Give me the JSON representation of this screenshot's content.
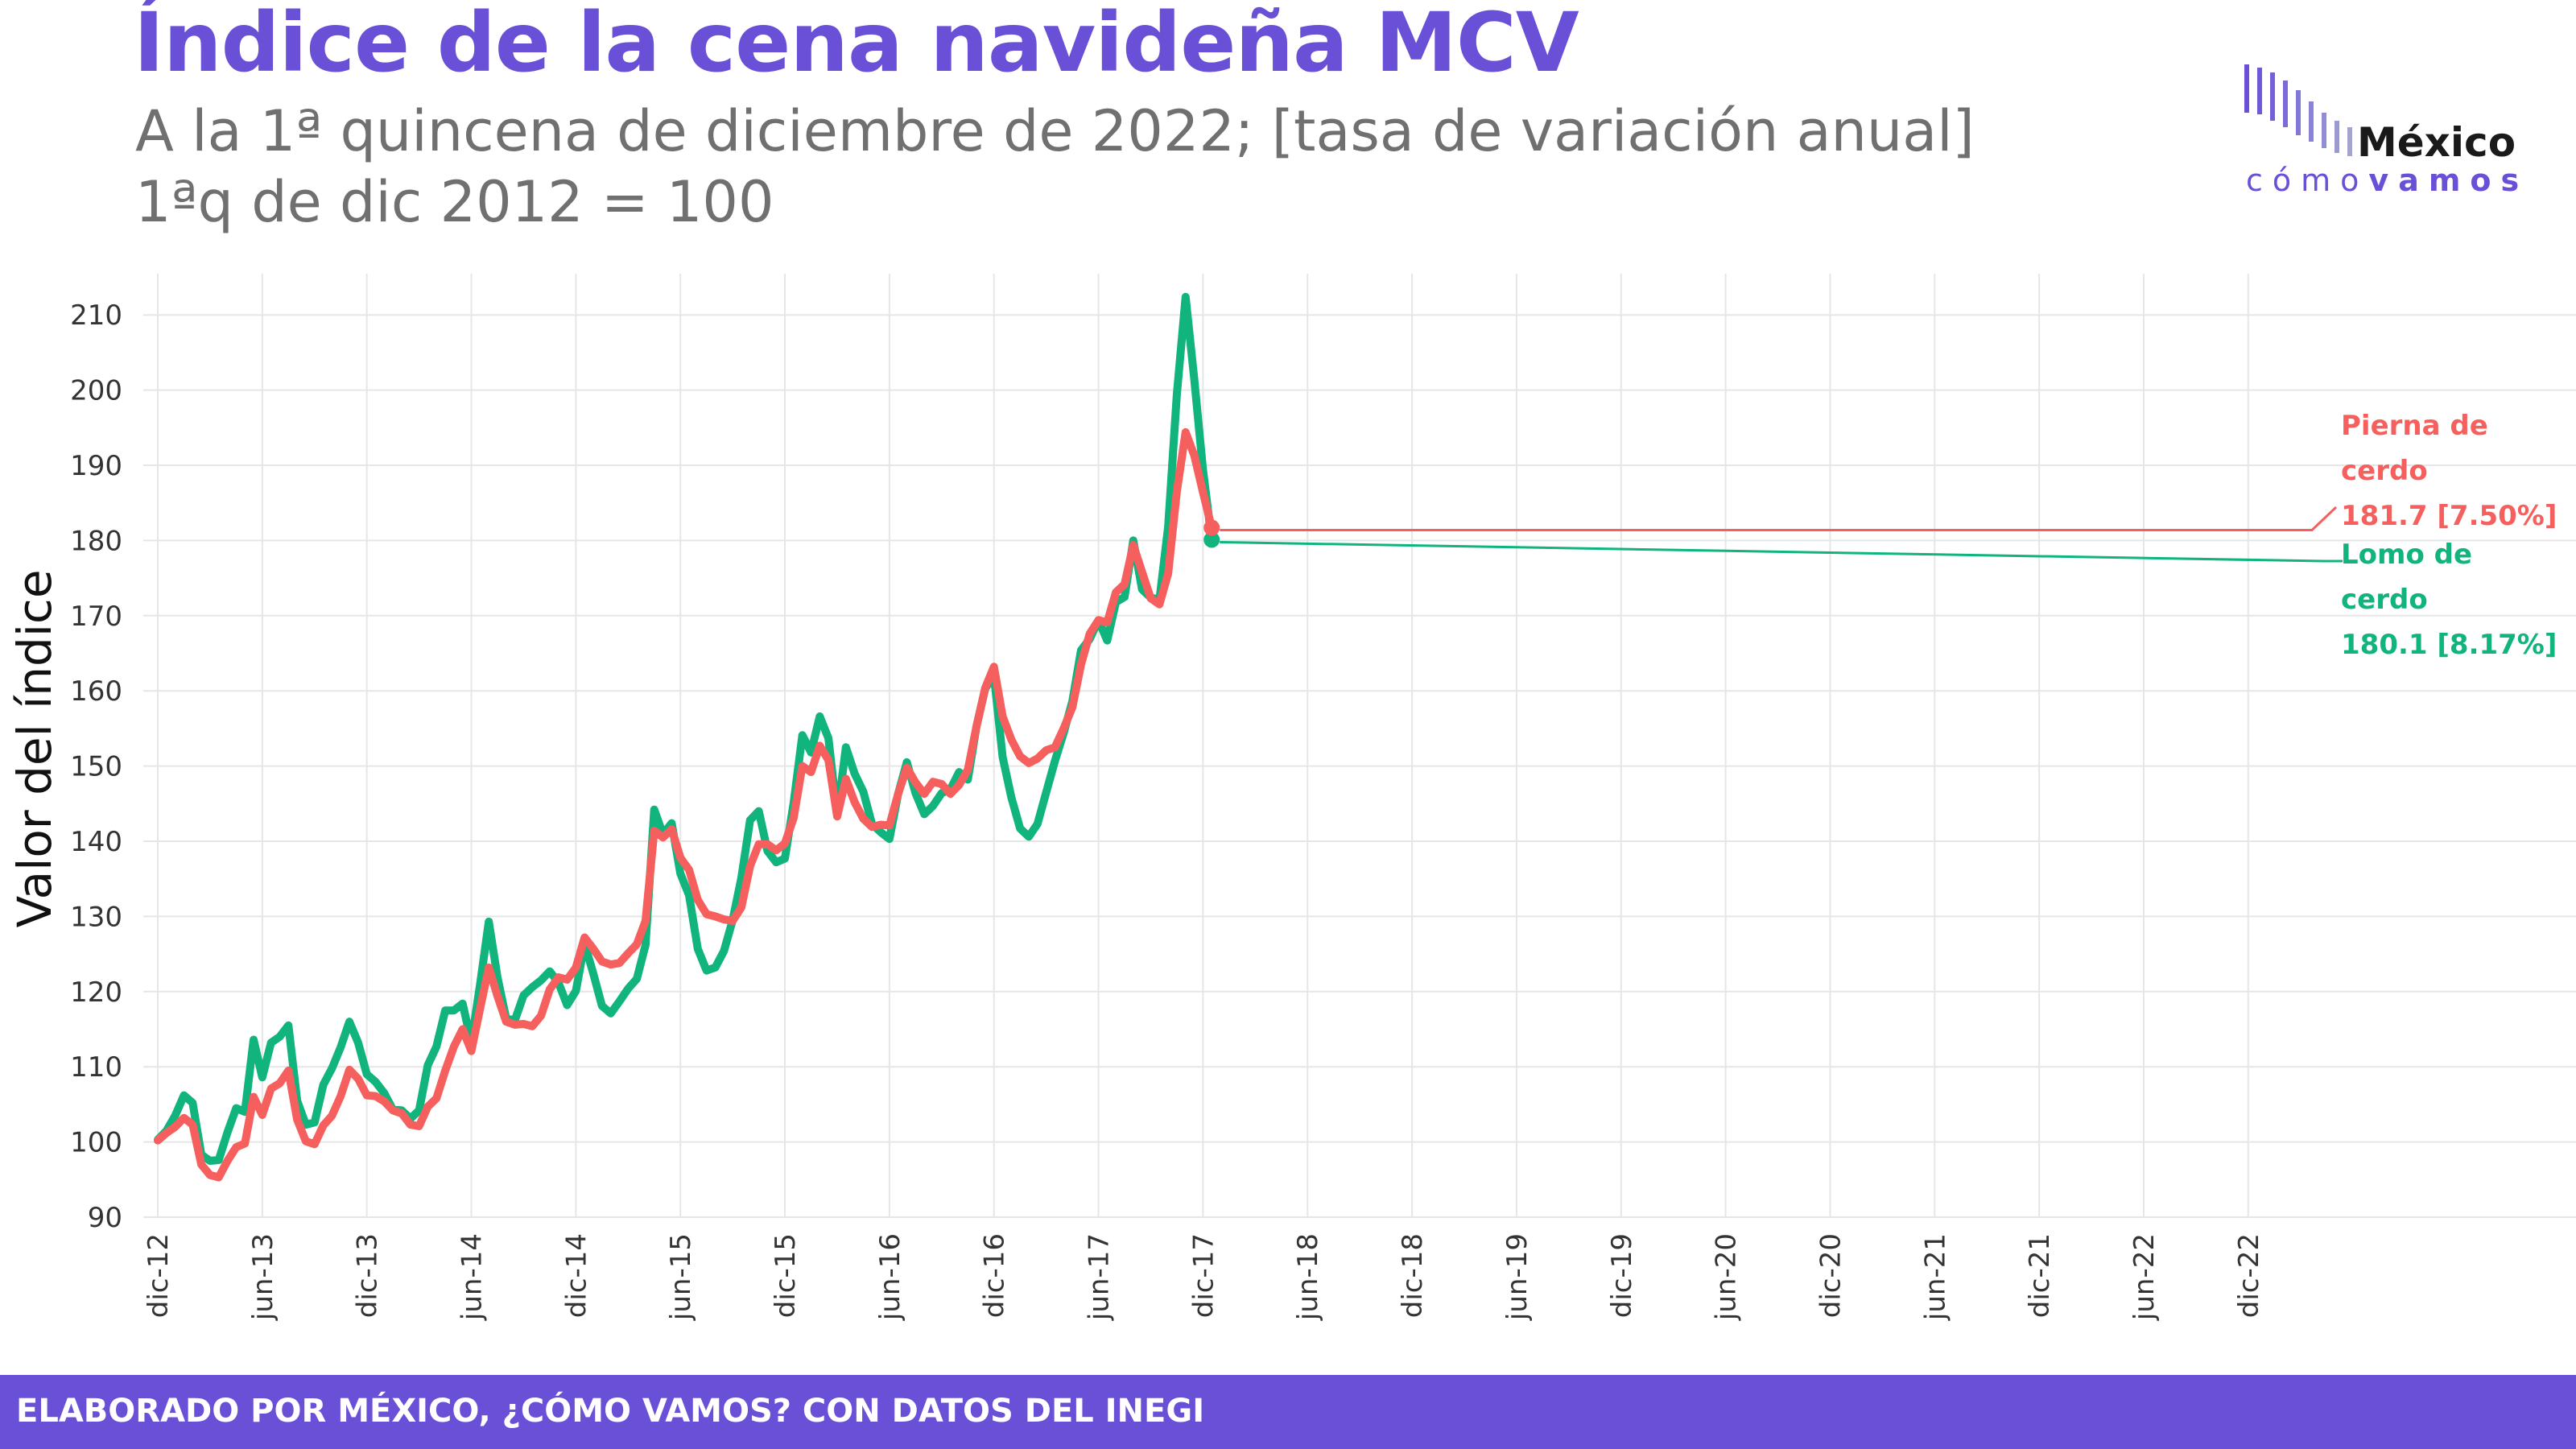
{
  "header": {
    "title": "Índice de la cena navideña MCV",
    "subtitle_line1": "A la 1ª quincena de diciembre de 2022; [tasa de variación anual]",
    "subtitle_line2": "1ªq de dic 2012 = 100"
  },
  "logo": {
    "name": "México",
    "tagline_a": "cómo",
    "tagline_b": "vamos"
  },
  "footer": {
    "text": "ELABORADO POR MÉXICO, ¿CÓMO VAMOS? CON DATOS DEL INEGI"
  },
  "colors": {
    "accent": "#6a4fd7",
    "lomo": "#10b47c",
    "pierna": "#f5605e"
  },
  "chart_data": {
    "type": "line",
    "ylabel": "Valor del índice",
    "ylim": [
      90,
      213
    ],
    "yticks": [
      90,
      100,
      110,
      120,
      130,
      140,
      150,
      160,
      170,
      180,
      190,
      200,
      210
    ],
    "x_tick_labels": [
      "dic-12",
      "jun-13",
      "dic-13",
      "jun-14",
      "dic-14",
      "jun-15",
      "dic-15",
      "jun-16",
      "dic-16",
      "jun-17",
      "dic-17",
      "jun-18",
      "dic-18",
      "jun-19",
      "dic-19",
      "jun-20",
      "dic-20",
      "jun-21",
      "dic-21",
      "jun-22",
      "dic-22"
    ],
    "x_note": "semi-monthly points (1st/2nd fortnight), Dec 2012 1st fortnight to Dec 2022 1st fortnight; keypoints interpolated between",
    "series": [
      {
        "name": "Lomo de cerdo",
        "end_label": "Lomo de cerdo",
        "end_value_text": "180.1 [8.17%]",
        "keypoints": [
          [
            0,
            100.3
          ],
          [
            1,
            101.5
          ],
          [
            2,
            103.5
          ],
          [
            3,
            106.2
          ],
          [
            4,
            105.2
          ],
          [
            5,
            98.3
          ],
          [
            6,
            97.5
          ],
          [
            7,
            97.6
          ],
          [
            8,
            101.3
          ],
          [
            9,
            104.5
          ],
          [
            10,
            104
          ],
          [
            11,
            113.6
          ],
          [
            12,
            108.6
          ],
          [
            13,
            113.2
          ],
          [
            14,
            114
          ],
          [
            15,
            115.5
          ],
          [
            16,
            105.5
          ],
          [
            17,
            102.3
          ],
          [
            18,
            102.6
          ],
          [
            19,
            107.6
          ],
          [
            20,
            109.8
          ],
          [
            21,
            112.6
          ],
          [
            22,
            116
          ],
          [
            23,
            113.2
          ],
          [
            24,
            109
          ],
          [
            25,
            108
          ],
          [
            26,
            106.5
          ],
          [
            27,
            104.3
          ],
          [
            28,
            104.2
          ],
          [
            29,
            103.1
          ],
          [
            30,
            104.2
          ],
          [
            31,
            110.2
          ],
          [
            32,
            112.7
          ],
          [
            33,
            117.5
          ],
          [
            34,
            117.5
          ],
          [
            35,
            118.4
          ],
          [
            36,
            113.2
          ],
          [
            37,
            120.9
          ],
          [
            38,
            129.3
          ],
          [
            39,
            121.9
          ],
          [
            40,
            116.4
          ],
          [
            41,
            116.2
          ],
          [
            42,
            119.5
          ],
          [
            43,
            120.6
          ],
          [
            44,
            121.5
          ],
          [
            45,
            122.7
          ],
          [
            46,
            121.2
          ],
          [
            47,
            118.2
          ],
          [
            48,
            120.1
          ],
          [
            49,
            126.4
          ],
          [
            50,
            122.4
          ],
          [
            51,
            118.1
          ],
          [
            52,
            117.1
          ],
          [
            53,
            118.7
          ],
          [
            54,
            120.4
          ],
          [
            55,
            121.7
          ],
          [
            56,
            126.2
          ],
          [
            57,
            144.2
          ],
          [
            58,
            140.9
          ],
          [
            59,
            142.4
          ],
          [
            60,
            135.7
          ],
          [
            61,
            132.8
          ],
          [
            62,
            125.7
          ],
          [
            63,
            122.8
          ],
          [
            64,
            123.2
          ],
          [
            65,
            125.4
          ],
          [
            66,
            129.5
          ],
          [
            67,
            135.1
          ],
          [
            68,
            142.8
          ],
          [
            69,
            144
          ],
          [
            70,
            138.7
          ],
          [
            71,
            137.2
          ],
          [
            72,
            137.7
          ],
          [
            73,
            145.1
          ],
          [
            74,
            154.1
          ],
          [
            75,
            151.8
          ],
          [
            76,
            156.6
          ],
          [
            77,
            153.7
          ],
          [
            78,
            143.4
          ],
          [
            79,
            152.5
          ],
          [
            80,
            149
          ],
          [
            81,
            146.6
          ],
          [
            82,
            142.3
          ],
          [
            83,
            141.2
          ],
          [
            84,
            140.3
          ],
          [
            85,
            146.3
          ],
          [
            86,
            150.5
          ],
          [
            87,
            146.4
          ],
          [
            88,
            143.6
          ],
          [
            89,
            144.7
          ],
          [
            90,
            146.4
          ],
          [
            91,
            146.9
          ],
          [
            92,
            149.2
          ],
          [
            93,
            148.2
          ],
          [
            94,
            155.3
          ],
          [
            95,
            160.3
          ],
          [
            96,
            162.1
          ],
          [
            97,
            151.2
          ],
          [
            98,
            145.8
          ],
          [
            99,
            141.7
          ],
          [
            100,
            140.6
          ],
          [
            101,
            142.3
          ],
          [
            102,
            146.5
          ],
          [
            103,
            150.7
          ],
          [
            104,
            154.4
          ],
          [
            105,
            158.6
          ],
          [
            106,
            165.4
          ],
          [
            107,
            166.9
          ],
          [
            108,
            169.4
          ],
          [
            109,
            166.7
          ],
          [
            110,
            171.8
          ],
          [
            111,
            172.5
          ],
          [
            112,
            180
          ],
          [
            113,
            173.5
          ],
          [
            114,
            172.4
          ],
          [
            115,
            172.1
          ],
          [
            116,
            181.8
          ],
          [
            117,
            199.4
          ],
          [
            118,
            212.4
          ],
          [
            119,
            201.4
          ],
          [
            120,
            189.4
          ],
          [
            121,
            180.1
          ]
        ]
      },
      {
        "name": "Pierna de cerdo",
        "end_label": "Pierna de cerdo",
        "end_value_text": "181.7 [7.50%]",
        "keypoints": [
          [
            0,
            100.2
          ],
          [
            1,
            101.2
          ],
          [
            2,
            102
          ],
          [
            3,
            103.2
          ],
          [
            4,
            102.3
          ],
          [
            5,
            97
          ],
          [
            6,
            95.6
          ],
          [
            7,
            95.3
          ],
          [
            8,
            97.5
          ],
          [
            9,
            99.3
          ],
          [
            10,
            99.8
          ],
          [
            11,
            106
          ],
          [
            12,
            103.6
          ],
          [
            13,
            107.1
          ],
          [
            14,
            107.8
          ],
          [
            15,
            109.5
          ],
          [
            16,
            103
          ],
          [
            17,
            100.1
          ],
          [
            18,
            99.7
          ],
          [
            19,
            102.2
          ],
          [
            20,
            103.5
          ],
          [
            21,
            106.1
          ],
          [
            22,
            109.6
          ],
          [
            23,
            108.4
          ],
          [
            24,
            106.2
          ],
          [
            25,
            106.1
          ],
          [
            26,
            105.4
          ],
          [
            27,
            104.2
          ],
          [
            28,
            103.8
          ],
          [
            29,
            102.3
          ],
          [
            30,
            102.1
          ],
          [
            31,
            104.7
          ],
          [
            32,
            105.8
          ],
          [
            33,
            109.5
          ],
          [
            34,
            112.7
          ],
          [
            35,
            115
          ],
          [
            36,
            112.1
          ],
          [
            37,
            117.7
          ],
          [
            38,
            123.2
          ],
          [
            39,
            119.4
          ],
          [
            40,
            116
          ],
          [
            41,
            115.6
          ],
          [
            42,
            115.7
          ],
          [
            43,
            115.4
          ],
          [
            44,
            116.8
          ],
          [
            45,
            120.3
          ],
          [
            46,
            121.9
          ],
          [
            47,
            121.6
          ],
          [
            48,
            123.2
          ],
          [
            49,
            127.2
          ],
          [
            50,
            125.7
          ],
          [
            51,
            124
          ],
          [
            52,
            123.6
          ],
          [
            53,
            123.8
          ],
          [
            54,
            125.1
          ],
          [
            55,
            126.3
          ],
          [
            56,
            129.4
          ],
          [
            57,
            141.4
          ],
          [
            58,
            140.5
          ],
          [
            59,
            141.6
          ],
          [
            60,
            137.8
          ],
          [
            61,
            136.2
          ],
          [
            62,
            132.2
          ],
          [
            63,
            130.3
          ],
          [
            64,
            130
          ],
          [
            65,
            129.6
          ],
          [
            66,
            129.4
          ],
          [
            67,
            131.2
          ],
          [
            68,
            136.7
          ],
          [
            69,
            139.6
          ],
          [
            70,
            139.6
          ],
          [
            71,
            138.8
          ],
          [
            72,
            139.7
          ],
          [
            73,
            143.1
          ],
          [
            74,
            150
          ],
          [
            75,
            149.2
          ],
          [
            76,
            152.7
          ],
          [
            77,
            150.8
          ],
          [
            78,
            143.3
          ],
          [
            79,
            148.3
          ],
          [
            80,
            145.2
          ],
          [
            81,
            143
          ],
          [
            82,
            141.9
          ],
          [
            83,
            142.2
          ],
          [
            84,
            142.1
          ],
          [
            85,
            146.3
          ],
          [
            86,
            149.8
          ],
          [
            87,
            147.8
          ],
          [
            88,
            146.3
          ],
          [
            89,
            147.9
          ],
          [
            90,
            147.6
          ],
          [
            91,
            146.3
          ],
          [
            92,
            147.5
          ],
          [
            93,
            149.5
          ],
          [
            94,
            155.3
          ],
          [
            95,
            160.4
          ],
          [
            96,
            163.2
          ],
          [
            97,
            156.6
          ],
          [
            98,
            153.5
          ],
          [
            99,
            151.3
          ],
          [
            100,
            150.4
          ],
          [
            101,
            151
          ],
          [
            102,
            152.1
          ],
          [
            103,
            152.5
          ],
          [
            104,
            155
          ],
          [
            105,
            157.8
          ],
          [
            106,
            163.5
          ],
          [
            107,
            167.6
          ],
          [
            108,
            169.4
          ],
          [
            109,
            169.1
          ],
          [
            110,
            173.1
          ],
          [
            111,
            174.2
          ],
          [
            112,
            179.4
          ],
          [
            113,
            175.8
          ],
          [
            114,
            172.3
          ],
          [
            115,
            171.5
          ],
          [
            116,
            175.6
          ],
          [
            117,
            186.5
          ],
          [
            118,
            194.4
          ],
          [
            119,
            191.3
          ],
          [
            120,
            186.4
          ],
          [
            121,
            181.7
          ]
        ]
      }
    ]
  }
}
